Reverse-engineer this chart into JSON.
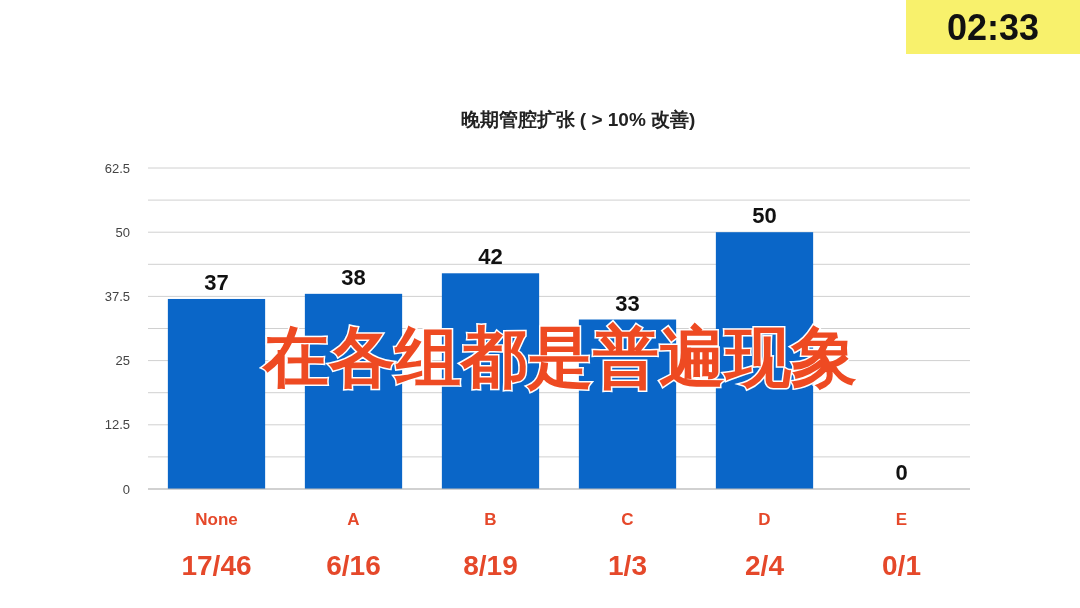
{
  "chart_data": {
    "type": "bar",
    "title": "晚期管腔扩张 ( > 10% 改善)",
    "categories": [
      "None\n17/46",
      "A\n6/16",
      "B\n8/19",
      "C\n1/3",
      "D\n2/4",
      "E\n0/1"
    ],
    "values": [
      37,
      38,
      42,
      33,
      50,
      0
    ],
    "color": "#0a66c8",
    "data_labels": true,
    "ylim": [
      0,
      62.5
    ],
    "yticks": [
      0,
      {
        "value": 6.25,
        "label": null
      },
      12.5,
      {
        "value": 18.75,
        "label": null
      },
      25,
      {
        "value": 31.25,
        "label": null
      },
      37.5,
      {
        "value": 43.75,
        "label": null
      },
      50,
      {
        "value": 56.25,
        "label": null
      },
      62.5
    ],
    "grid": "y",
    "annotations": [
      "02:33",
      "在各组都是普遍现象"
    ]
  }
}
